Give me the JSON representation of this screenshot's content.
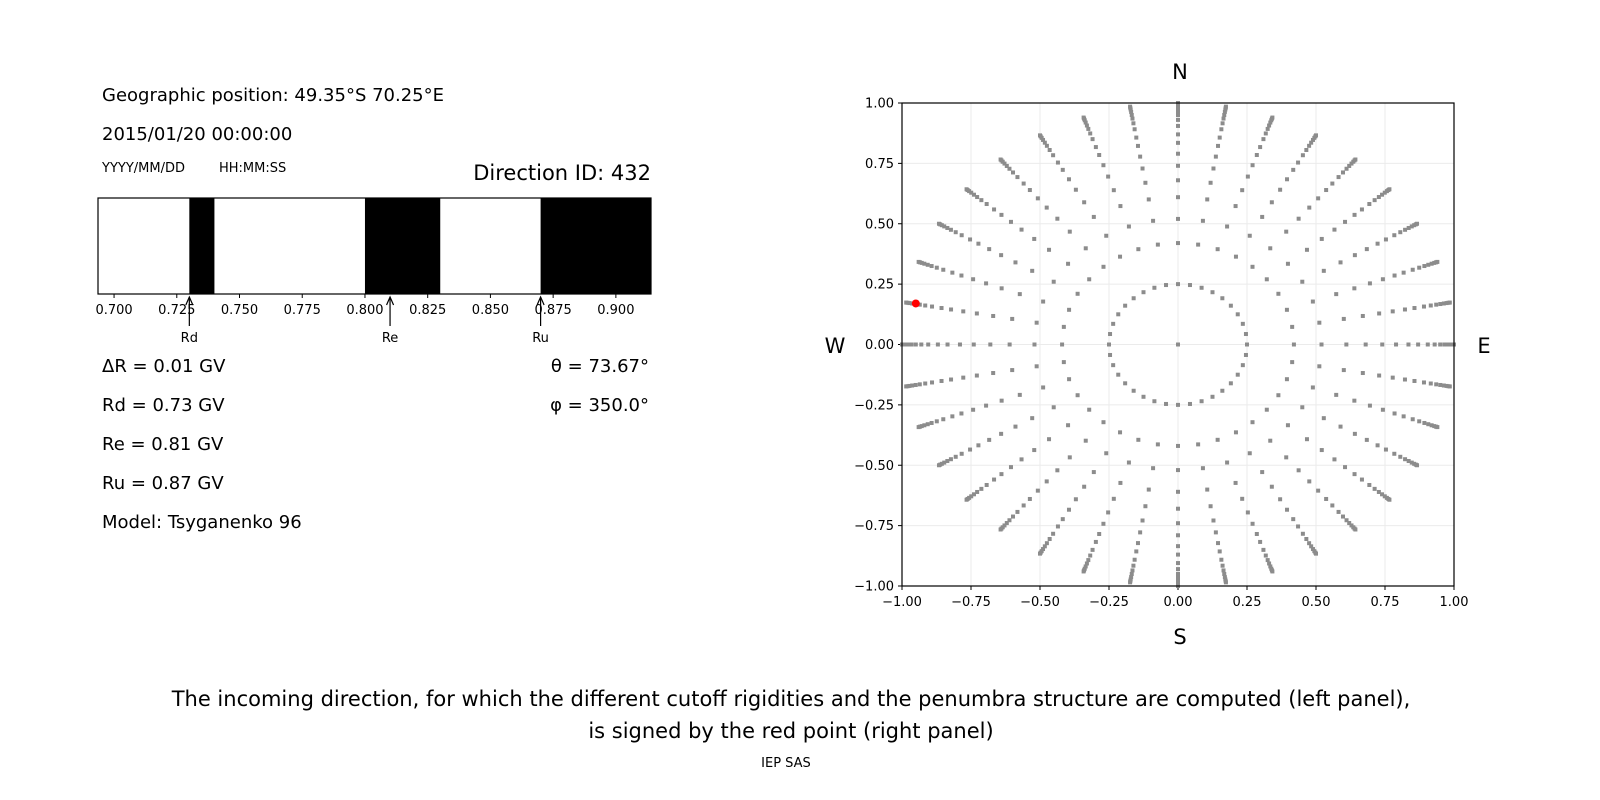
{
  "left_panel": {
    "geo_position": "Geographic position: 49.35°S 70.25°E",
    "datetime": "2015/01/20 00:00:00",
    "date_format": "YYYY/MM/DD",
    "time_format": "HH:MM:SS",
    "direction_id": "Direction ID: 432",
    "delta_r": "ΔR = 0.01 GV",
    "rd": "Rd = 0.73 GV",
    "re": "Re = 0.81 GV",
    "ru": "Ru = 0.87 GV",
    "model": "Model: Tsyganenko 96",
    "theta": "θ = 73.67°",
    "phi": "φ = 350.0°"
  },
  "chart_data": [
    {
      "type": "bar",
      "description_kind": "penumbra",
      "xlim": [
        0.6936,
        0.914
      ],
      "xticks": [
        "0.700",
        "0.725",
        "0.750",
        "0.775",
        "0.800",
        "0.825",
        "0.850",
        "0.875",
        "0.900"
      ],
      "xtick_values": [
        0.7,
        0.725,
        0.75,
        0.775,
        0.8,
        0.825,
        0.85,
        0.875,
        0.9
      ],
      "forbidden_bands": [
        [
          0.73,
          0.74
        ],
        [
          0.8,
          0.83
        ],
        [
          0.87,
          0.914
        ]
      ],
      "band_color": "#000000",
      "markers": [
        {
          "label": "Rd",
          "value": 0.73
        },
        {
          "label": "Re",
          "value": 0.81
        },
        {
          "label": "Ru",
          "value": 0.87
        }
      ]
    },
    {
      "type": "scatter",
      "xlim": [
        -1,
        1
      ],
      "ylim": [
        -1,
        1
      ],
      "grid": true,
      "xticks": [
        "−1.00",
        "−0.75",
        "−0.50",
        "−0.25",
        "0.00",
        "0.25",
        "0.50",
        "0.75",
        "1.00"
      ],
      "yticks": [
        "−1.00",
        "−0.75",
        "−0.50",
        "−0.25",
        "0.00",
        "0.25",
        "0.50",
        "0.75",
        "1.00"
      ],
      "tick_values": [
        -1,
        -0.75,
        -0.5,
        -0.25,
        0,
        0.25,
        0.5,
        0.75,
        1
      ],
      "compass": {
        "north": "N",
        "south": "S",
        "west": "W",
        "east": "E"
      },
      "point_color": "#8c8c8c",
      "center_point": [
        0,
        0
      ],
      "inner_ring": {
        "radius": 0.25,
        "azimuth_step_deg": 10
      },
      "rays": {
        "azimuth_step_deg": 10,
        "radii": [
          0.42,
          0.52,
          0.61,
          0.68,
          0.74,
          0.79,
          0.835,
          0.87,
          0.905,
          0.93,
          0.95,
          0.965,
          0.978,
          0.988,
          0.995,
          1.0
        ]
      },
      "highlight_point": {
        "x": -0.95,
        "y": 0.17,
        "color": "#ff0000"
      }
    }
  ],
  "caption": {
    "line1": "The incoming direction, for which the different cutoff rigidities and the penumbra structure are computed (left panel),",
    "line2": "is signed by the red point (right panel)"
  },
  "footer": "IEP SAS"
}
